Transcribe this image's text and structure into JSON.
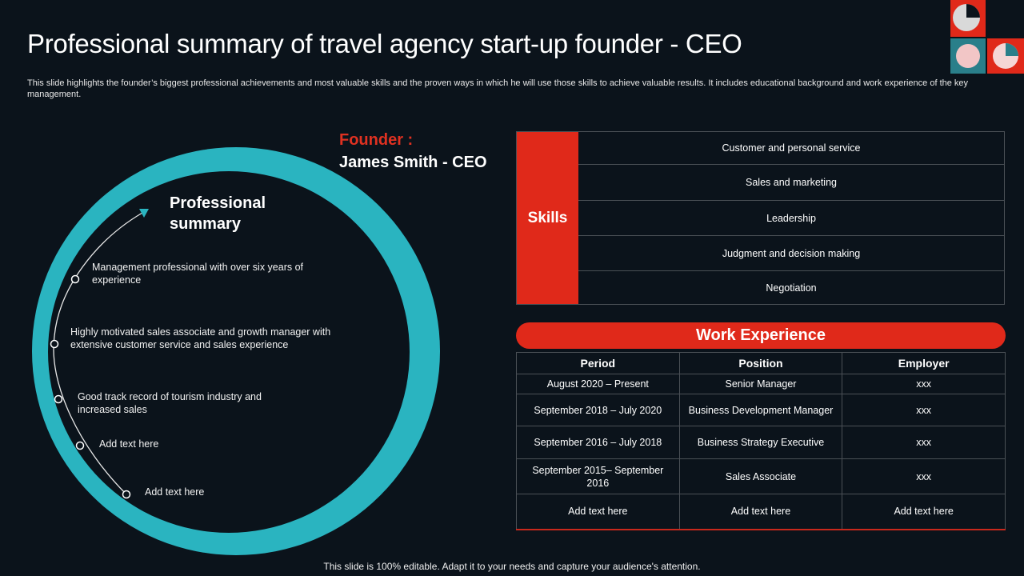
{
  "slide": {
    "title": "Professional summary of travel agency start-up founder - CEO",
    "subtitle": "This slide highlights the founder’s biggest professional achievements and most valuable skills and the proven ways in which he will use those skills to achieve valuable results. It includes educational background and work experience of the key management.",
    "footer": "This slide is 100% editable. Adapt it to your needs and capture your audience's attention."
  },
  "summary": {
    "title_line1": "Professional",
    "title_line2": "summary",
    "items": [
      "Management professional with over six years of experience",
      "Highly motivated sales associate and growth manager with extensive customer service and sales experience",
      "Good track record of tourism industry and increased sales",
      "Add text here",
      "Add text here"
    ]
  },
  "founder": {
    "label": "Founder :",
    "name": "James Smith - CEO"
  },
  "skills": {
    "label": "Skills",
    "items": [
      "Customer and personal service",
      "Sales and marketing",
      "Leadership",
      "Judgment and decision making",
      "Negotiation"
    ]
  },
  "work": {
    "title": "Work Experience",
    "headers": [
      "Period",
      "Position",
      "Employer"
    ],
    "rows": [
      [
        "August 2020 – Present",
        "Senior Manager",
        "xxx"
      ],
      [
        "September 2018 – July 2020",
        "Business Development Manager",
        "xxx"
      ],
      [
        "September 2016 – July 2018",
        "Business Strategy Executive",
        "xxx"
      ],
      [
        "September 2015– September 2016",
        "Sales Associate",
        "xxx"
      ],
      [
        "Add text here",
        "Add text here",
        "Add text here"
      ]
    ]
  },
  "colors": {
    "background": "#0b131b",
    "accent_red": "#e0291a",
    "accent_teal": "#2ab4c0"
  },
  "icons": {
    "logo": "brand-logo-icon",
    "timeline_arrow": "arrow-up-right-icon",
    "timeline_node": "circle-node-icon"
  }
}
